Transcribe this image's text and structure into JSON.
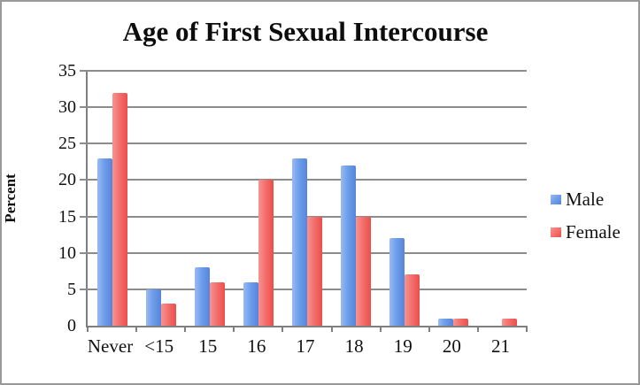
{
  "figure": {
    "background": "#ffffff",
    "border_color": "#999999"
  },
  "chart_data": {
    "type": "bar",
    "title": "Age of First Sexual Intercourse",
    "ylabel": "Percent",
    "xlabel": "",
    "categories": [
      "Never",
      "<15",
      "15",
      "16",
      "17",
      "18",
      "19",
      "20",
      "21"
    ],
    "series": [
      {
        "name": "Male",
        "color": "#6D9EEB",
        "color_light": "#9ABAF3",
        "color_dark": "#5784DB",
        "values": [
          23,
          5,
          8,
          6,
          23,
          22,
          12,
          1,
          0
        ]
      },
      {
        "name": "Female",
        "color": "#F3716E",
        "color_light": "#F9928F",
        "color_dark": "#EC4E4B",
        "values": [
          32,
          3,
          6,
          20,
          15,
          15,
          7,
          1,
          1
        ]
      }
    ],
    "ylim": [
      0,
      35
    ],
    "ytick_step": 5,
    "yticks": [
      0,
      5,
      10,
      15,
      20,
      25,
      30,
      35
    ],
    "grid": true,
    "gridline_color": "#8c8c8c",
    "axis_color": "#7f7f7f",
    "legend_position": "right"
  }
}
